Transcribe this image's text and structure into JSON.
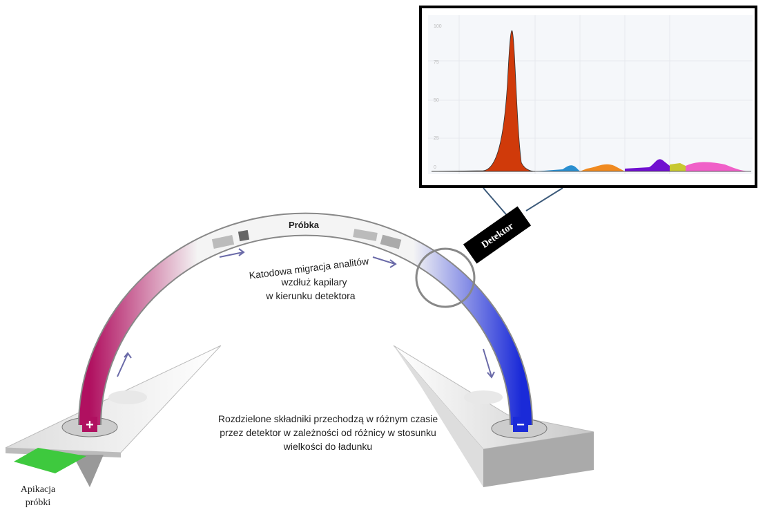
{
  "labels": {
    "sample": "Próbka",
    "detector": "Detektor",
    "migration": [
      "Katodowa migracja analitów",
      "wzdłuż kapilary",
      "w kierunku detektora"
    ],
    "separation": [
      "Rozdzielone składniki przechodzą w różnym czasie",
      "przez detektor w zależności od różnicy w stosunku",
      "wielkości do ładunku"
    ],
    "application": [
      "Apikacja",
      "próbki"
    ],
    "anode": "+",
    "cathode": "−"
  },
  "inset": {
    "yticks": [
      "100",
      "75",
      "50",
      "25",
      "0"
    ]
  }
}
